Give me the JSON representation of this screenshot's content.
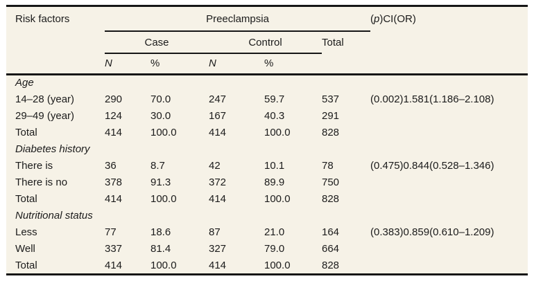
{
  "colors": {
    "sheet_background": "#f6f2e7",
    "rule": "#161616",
    "text": "#1b1b1b",
    "page_background": "#ffffff"
  },
  "table": {
    "header": {
      "risk_factors": "Risk factors",
      "preeclampsia": "Preeclampsia",
      "case": "Case",
      "control": "Control",
      "total": "Total",
      "case_n": "N",
      "case_pct": "%",
      "control_n": "N",
      "control_pct": "%",
      "ci_prefix": "(",
      "ci_p": "p",
      "ci_suffix": ")CI(OR)"
    },
    "sections": [
      {
        "title": "Age",
        "rows": [
          {
            "label": "14–28 (year)",
            "case_n": "290",
            "case_pct": "70.0",
            "control_n": "247",
            "control_pct": "59.7",
            "total": "537",
            "ci": "(0.002)1.581(1.186–2.108)"
          },
          {
            "label": "29–49 (year)",
            "case_n": "124",
            "case_pct": "30.0",
            "control_n": "167",
            "control_pct": "40.3",
            "total": "291",
            "ci": ""
          },
          {
            "label": "Total",
            "case_n": "414",
            "case_pct": "100.0",
            "control_n": "414",
            "control_pct": "100.0",
            "total": "828",
            "ci": ""
          }
        ]
      },
      {
        "title": "Diabetes history",
        "rows": [
          {
            "label": "There is",
            "case_n": "36",
            "case_pct": "8.7",
            "control_n": "42",
            "control_pct": "10.1",
            "total": "78",
            "ci": "(0.475)0.844(0.528–1.346)"
          },
          {
            "label": "There is no",
            "case_n": "378",
            "case_pct": "91.3",
            "control_n": "372",
            "control_pct": "89.9",
            "total": "750",
            "ci": ""
          },
          {
            "label": "Total",
            "case_n": "414",
            "case_pct": "100.0",
            "control_n": "414",
            "control_pct": "100.0",
            "total": "828",
            "ci": ""
          }
        ]
      },
      {
        "title": "Nutritional status",
        "rows": [
          {
            "label": "Less",
            "case_n": "77",
            "case_pct": "18.6",
            "control_n": "87",
            "control_pct": "21.0",
            "total": "164",
            "ci": "(0.383)0.859(0.610–1.209)"
          },
          {
            "label": "Well",
            "case_n": "337",
            "case_pct": "81.4",
            "control_n": "327",
            "control_pct": "79.0",
            "total": "664",
            "ci": ""
          },
          {
            "label": "Total",
            "case_n": "414",
            "case_pct": "100.0",
            "control_n": "414",
            "control_pct": "100.0",
            "total": "828",
            "ci": ""
          }
        ]
      }
    ]
  }
}
